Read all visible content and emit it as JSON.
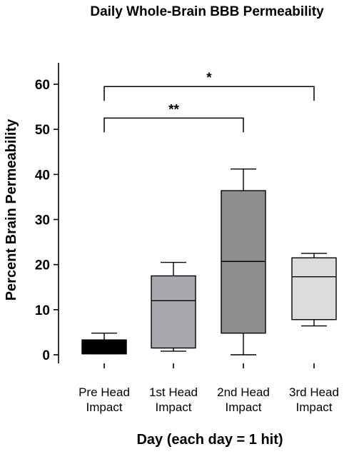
{
  "chart_data": {
    "type": "box",
    "title": "Daily Whole-Brain BBB Permeability",
    "xlabel": "Day (each day = 1 hit)",
    "ylabel": "Percent Brain Permeability",
    "ylim": [
      0,
      65
    ],
    "yticks": [
      0,
      10,
      20,
      30,
      40,
      50,
      60
    ],
    "grid": false,
    "categories": [
      [
        "Pre Head",
        "Impact"
      ],
      [
        "1st Head",
        "Impact"
      ],
      [
        "2nd Head",
        "Impact"
      ],
      [
        "3rd Head",
        "Impact"
      ]
    ],
    "boxes": [
      {
        "min": 0.2,
        "q1": 0.2,
        "median": 3.2,
        "q3": 3.3,
        "max": 4.8,
        "color": "#000000"
      },
      {
        "min": 0.8,
        "q1": 1.5,
        "median": 12.0,
        "q3": 17.5,
        "max": 20.5,
        "color": "#a9a8ae"
      },
      {
        "min": 0.0,
        "q1": 4.8,
        "median": 20.7,
        "q3": 36.4,
        "max": 41.2,
        "color": "#8f8f8f"
      },
      {
        "min": 6.4,
        "q1": 7.8,
        "median": 17.3,
        "q3": 21.5,
        "max": 22.5,
        "color": "#dcdcdc"
      }
    ],
    "significance": [
      {
        "from": 0,
        "to": 2,
        "y": 52.5,
        "label": "**"
      },
      {
        "from": 0,
        "to": 3,
        "y": 59.5,
        "label": "*"
      }
    ]
  }
}
